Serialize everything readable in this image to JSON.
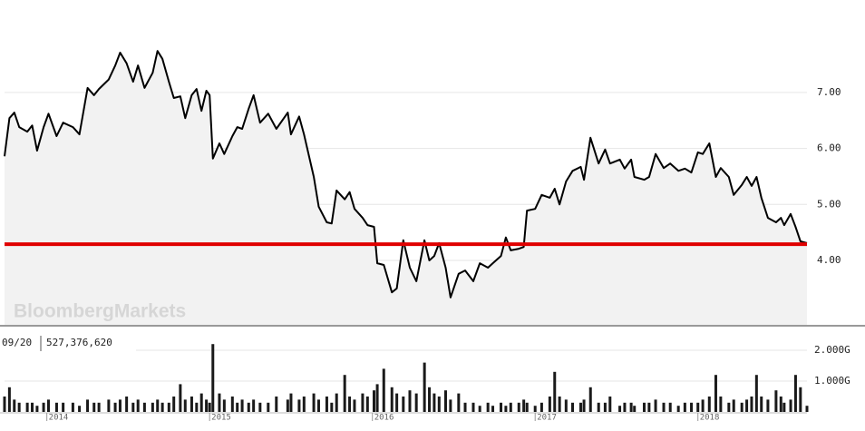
{
  "chart_data": [
    {
      "type": "line",
      "watermark": "BloombergMarkets",
      "color": "#000000",
      "area_color": "#f2f2f2",
      "x": [
        2013.74,
        2013.77,
        2013.8,
        2013.83,
        2013.88,
        2013.91,
        2013.94,
        2013.98,
        2014.01,
        2014.06,
        2014.1,
        2014.16,
        2014.2,
        2014.25,
        2014.29,
        2014.32,
        2014.38,
        2014.42,
        2014.45,
        2014.49,
        2014.53,
        2014.56,
        2014.6,
        2014.65,
        2014.68,
        2014.71,
        2014.75,
        2014.78,
        2014.82,
        2014.85,
        2014.89,
        2014.92,
        2014.95,
        2014.98,
        2015.0,
        2015.02,
        2015.06,
        2015.09,
        2015.14,
        2015.17,
        2015.2,
        2015.24,
        2015.27,
        2015.31,
        2015.36,
        2015.41,
        2015.48,
        2015.5,
        2015.55,
        2015.58,
        2015.64,
        2015.67,
        2015.72,
        2015.75,
        2015.78,
        2015.83,
        2015.86,
        2015.89,
        2015.94,
        2015.97,
        2016.01,
        2016.03,
        2016.07,
        2016.12,
        2016.15,
        2016.19,
        2016.23,
        2016.27,
        2016.32,
        2016.35,
        2016.38,
        2016.41,
        2016.45,
        2016.48,
        2016.53,
        2016.57,
        2016.62,
        2016.66,
        2016.71,
        2016.74,
        2016.79,
        2016.82,
        2016.85,
        2016.9,
        2016.93,
        2016.95,
        2017.0,
        2017.04,
        2017.09,
        2017.12,
        2017.15,
        2017.19,
        2017.23,
        2017.28,
        2017.3,
        2017.34,
        2017.39,
        2017.43,
        2017.46,
        2017.52,
        2017.55,
        2017.59,
        2017.61,
        2017.67,
        2017.7,
        2017.74,
        2017.79,
        2017.83,
        2017.88,
        2017.92,
        2017.96,
        2018.0,
        2018.03,
        2018.07,
        2018.11,
        2018.14,
        2018.19,
        2018.22,
        2018.27,
        2018.3,
        2018.33,
        2018.36,
        2018.39,
        2018.43,
        2018.48,
        2018.51,
        2018.53,
        2018.57,
        2018.6,
        2018.63,
        2018.67
      ],
      "values": [
        5.86,
        6.54,
        6.64,
        6.38,
        6.3,
        6.41,
        5.96,
        6.38,
        6.62,
        6.22,
        6.46,
        6.38,
        6.25,
        7.08,
        6.95,
        7.06,
        7.23,
        7.48,
        7.71,
        7.52,
        7.19,
        7.48,
        7.08,
        7.35,
        7.74,
        7.6,
        7.19,
        6.9,
        6.93,
        6.54,
        6.95,
        7.06,
        6.67,
        7.03,
        6.95,
        5.82,
        6.09,
        5.9,
        6.22,
        6.38,
        6.35,
        6.71,
        6.95,
        6.46,
        6.62,
        6.35,
        6.64,
        6.25,
        6.57,
        6.25,
        5.49,
        4.96,
        4.68,
        4.66,
        5.25,
        5.09,
        5.22,
        4.92,
        4.76,
        4.63,
        4.6,
        3.95,
        3.92,
        3.43,
        3.5,
        4.36,
        3.87,
        3.63,
        4.36,
        4.0,
        4.08,
        4.31,
        3.87,
        3.34,
        3.76,
        3.82,
        3.63,
        3.95,
        3.87,
        3.95,
        4.08,
        4.41,
        4.18,
        4.21,
        4.24,
        4.89,
        4.92,
        5.17,
        5.12,
        5.28,
        5.0,
        5.41,
        5.6,
        5.67,
        5.44,
        6.19,
        5.73,
        5.98,
        5.73,
        5.8,
        5.64,
        5.8,
        5.49,
        5.44,
        5.49,
        5.9,
        5.65,
        5.73,
        5.6,
        5.64,
        5.57,
        5.93,
        5.9,
        6.09,
        5.49,
        5.65,
        5.49,
        5.17,
        5.35,
        5.49,
        5.33,
        5.49,
        5.12,
        4.76,
        4.68,
        4.76,
        4.63,
        4.83,
        4.6,
        4.34,
        4.31
      ],
      "xlim": [
        2013.74,
        2018.67
      ],
      "ylim": [
        2.85,
        8.65
      ],
      "yticks": [
        {
          "value": 4,
          "label": "4.00"
        },
        {
          "value": 5,
          "label": "5.00"
        },
        {
          "value": 6,
          "label": "6.00"
        },
        {
          "value": 7,
          "label": "7.00"
        }
      ],
      "grid": true,
      "reference_line": {
        "value": 4.29,
        "color": "#e00000"
      }
    },
    {
      "type": "bar",
      "color": "#1a1a1a",
      "readout": {
        "date": "09/20",
        "value": "527,376,620"
      },
      "x": [
        2013.74,
        2013.77,
        2013.8,
        2013.83,
        2013.88,
        2013.91,
        2013.94,
        2013.98,
        2014.01,
        2014.06,
        2014.1,
        2014.16,
        2014.2,
        2014.25,
        2014.29,
        2014.32,
        2014.38,
        2014.42,
        2014.45,
        2014.49,
        2014.53,
        2014.56,
        2014.6,
        2014.65,
        2014.68,
        2014.71,
        2014.75,
        2014.78,
        2014.82,
        2014.85,
        2014.89,
        2014.92,
        2014.95,
        2014.98,
        2015.0,
        2015.02,
        2015.06,
        2015.09,
        2015.14,
        2015.17,
        2015.2,
        2015.24,
        2015.27,
        2015.31,
        2015.36,
        2015.41,
        2015.48,
        2015.5,
        2015.55,
        2015.58,
        2015.64,
        2015.67,
        2015.72,
        2015.75,
        2015.78,
        2015.83,
        2015.86,
        2015.89,
        2015.94,
        2015.97,
        2016.01,
        2016.03,
        2016.07,
        2016.12,
        2016.15,
        2016.19,
        2016.23,
        2016.27,
        2016.32,
        2016.35,
        2016.38,
        2016.41,
        2016.45,
        2016.48,
        2016.53,
        2016.57,
        2016.62,
        2016.66,
        2016.71,
        2016.74,
        2016.79,
        2016.82,
        2016.85,
        2016.9,
        2016.93,
        2016.95,
        2017.0,
        2017.04,
        2017.09,
        2017.12,
        2017.15,
        2017.19,
        2017.23,
        2017.28,
        2017.3,
        2017.34,
        2017.39,
        2017.43,
        2017.46,
        2017.52,
        2017.55,
        2017.59,
        2017.61,
        2017.67,
        2017.7,
        2017.74,
        2017.79,
        2017.83,
        2017.88,
        2017.92,
        2017.96,
        2018.0,
        2018.03,
        2018.07,
        2018.11,
        2018.14,
        2018.19,
        2018.22,
        2018.27,
        2018.3,
        2018.33,
        2018.36,
        2018.39,
        2018.43,
        2018.48,
        2018.51,
        2018.53,
        2018.57,
        2018.6,
        2018.63,
        2018.67
      ],
      "values": [
        0.5,
        0.8,
        0.4,
        0.3,
        0.3,
        0.3,
        0.2,
        0.3,
        0.4,
        0.3,
        0.3,
        0.3,
        0.2,
        0.4,
        0.3,
        0.3,
        0.4,
        0.3,
        0.4,
        0.5,
        0.3,
        0.4,
        0.3,
        0.3,
        0.4,
        0.3,
        0.3,
        0.5,
        0.9,
        0.4,
        0.5,
        0.3,
        0.6,
        0.4,
        0.3,
        2.2,
        0.6,
        0.4,
        0.5,
        0.3,
        0.4,
        0.3,
        0.4,
        0.3,
        0.3,
        0.5,
        0.4,
        0.6,
        0.4,
        0.5,
        0.6,
        0.4,
        0.5,
        0.3,
        0.6,
        1.2,
        0.5,
        0.4,
        0.6,
        0.5,
        0.7,
        0.9,
        1.4,
        0.8,
        0.6,
        0.5,
        0.7,
        0.6,
        1.6,
        0.8,
        0.6,
        0.5,
        0.7,
        0.4,
        0.6,
        0.3,
        0.3,
        0.2,
        0.3,
        0.2,
        0.3,
        0.2,
        0.3,
        0.3,
        0.4,
        0.3,
        0.2,
        0.3,
        0.5,
        1.3,
        0.5,
        0.4,
        0.3,
        0.3,
        0.4,
        0.8,
        0.3,
        0.3,
        0.5,
        0.2,
        0.3,
        0.3,
        0.2,
        0.3,
        0.3,
        0.4,
        0.3,
        0.3,
        0.2,
        0.3,
        0.3,
        0.3,
        0.4,
        0.5,
        1.2,
        0.5,
        0.3,
        0.4,
        0.3,
        0.4,
        0.5,
        1.2,
        0.5,
        0.4,
        0.7,
        0.5,
        0.3,
        0.4,
        1.2,
        0.8,
        0.2
      ],
      "xlim": [
        2013.74,
        2018.67
      ],
      "ylim": [
        0,
        2.53
      ],
      "yticks": [
        {
          "value": 1,
          "label": "1.000G"
        },
        {
          "value": 2,
          "label": "2.000G"
        }
      ],
      "xticks": [
        2014,
        2015,
        2016,
        2017,
        2018
      ],
      "grid": true
    }
  ]
}
